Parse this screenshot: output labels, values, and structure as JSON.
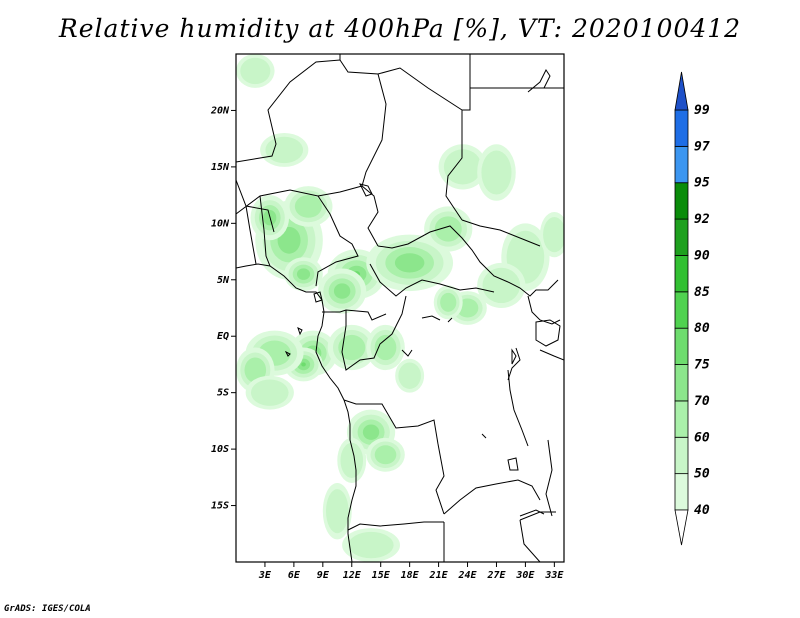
{
  "title": "Relative humidity at 400hPa [%], VT: 2020100412",
  "credit": "GrADS: IGES/COLA",
  "map": {
    "lon_range": [
      0,
      34
    ],
    "lat_range": [
      -20,
      25
    ],
    "lat_labels": [
      {
        "text": "20N",
        "lat": 20
      },
      {
        "text": "15N",
        "lat": 15
      },
      {
        "text": "10N",
        "lat": 10
      },
      {
        "text": "5N",
        "lat": 5
      },
      {
        "text": "EQ",
        "lat": 0
      },
      {
        "text": "5S",
        "lat": -5
      },
      {
        "text": "10S",
        "lat": -10
      },
      {
        "text": "15S",
        "lat": -15
      }
    ],
    "lon_labels": [
      {
        "text": "3E",
        "lon": 3
      },
      {
        "text": "6E",
        "lon": 6
      },
      {
        "text": "9E",
        "lon": 9
      },
      {
        "text": "12E",
        "lon": 12
      },
      {
        "text": "15E",
        "lon": 15
      },
      {
        "text": "18E",
        "lon": 18
      },
      {
        "text": "21E",
        "lon": 21
      },
      {
        "text": "24E",
        "lon": 24
      },
      {
        "text": "27E",
        "lon": 27
      },
      {
        "text": "30E",
        "lon": 30
      },
      {
        "text": "33E",
        "lon": 33
      }
    ]
  },
  "colorbar": {
    "levels": [
      {
        "label": "40",
        "color": "#f0fff0"
      },
      {
        "label": "50",
        "color": "#dcfadc"
      },
      {
        "label": "60",
        "color": "#c8f5c8"
      },
      {
        "label": "70",
        "color": "#aaf0aa"
      },
      {
        "label": "75",
        "color": "#8ce68c"
      },
      {
        "label": "80",
        "color": "#6edc6e"
      },
      {
        "label": "85",
        "color": "#50d250"
      },
      {
        "label": "90",
        "color": "#32c032"
      },
      {
        "label": "92",
        "color": "#1ea01e"
      },
      {
        "label": "95",
        "color": "#0a8c0a"
      },
      {
        "label": "97",
        "color": "#3c96f0"
      },
      {
        "label": "99",
        "color": "#1e6ee6"
      }
    ],
    "under_color": "#ffffff",
    "over_color": "#1e50c8"
  },
  "humidity_patches": [
    {
      "lon": 5.5,
      "lat": 8.5,
      "rx": 3.5,
      "ry": 3.5,
      "level": 3
    },
    {
      "lon": 3.5,
      "lat": 10.5,
      "rx": 2.0,
      "ry": 2.0,
      "level": 3
    },
    {
      "lon": 7.5,
      "lat": 11.5,
      "rx": 2.5,
      "ry": 1.8,
      "level": 2
    },
    {
      "lon": 12.5,
      "lat": 5.5,
      "rx": 3.0,
      "ry": 2.2,
      "level": 4
    },
    {
      "lon": 11.0,
      "lat": 4.0,
      "rx": 2.5,
      "ry": 2.0,
      "level": 3
    },
    {
      "lon": 18.0,
      "lat": 6.5,
      "rx": 4.5,
      "ry": 2.5,
      "level": 3
    },
    {
      "lon": 22.0,
      "lat": 9.5,
      "rx": 2.5,
      "ry": 2.0,
      "level": 2
    },
    {
      "lon": 23.5,
      "lat": 15.0,
      "rx": 2.5,
      "ry": 2.0,
      "level": 1
    },
    {
      "lon": 27.0,
      "lat": 14.5,
      "rx": 2.0,
      "ry": 2.5,
      "level": 1
    },
    {
      "lon": 30.0,
      "lat": 7.0,
      "rx": 2.5,
      "ry": 3.0,
      "level": 1
    },
    {
      "lon": 33.0,
      "lat": 9.0,
      "rx": 1.5,
      "ry": 2.0,
      "level": 1
    },
    {
      "lon": 8.0,
      "lat": -1.5,
      "rx": 2.5,
      "ry": 2.0,
      "level": 3
    },
    {
      "lon": 7.0,
      "lat": -2.5,
      "rx": 2.0,
      "ry": 1.5,
      "level": 4
    },
    {
      "lon": 4.0,
      "lat": -1.5,
      "rx": 3.0,
      "ry": 2.0,
      "level": 2
    },
    {
      "lon": 2.0,
      "lat": -3.0,
      "rx": 2.0,
      "ry": 2.0,
      "level": 2
    },
    {
      "lon": 3.5,
      "lat": -5.0,
      "rx": 2.5,
      "ry": 1.5,
      "level": 1
    },
    {
      "lon": 12.0,
      "lat": -1.0,
      "rx": 2.5,
      "ry": 2.0,
      "level": 2
    },
    {
      "lon": 15.5,
      "lat": -1.0,
      "rx": 2.0,
      "ry": 2.0,
      "level": 2
    },
    {
      "lon": 14.0,
      "lat": -8.5,
      "rx": 2.5,
      "ry": 2.0,
      "level": 3
    },
    {
      "lon": 15.5,
      "lat": -10.5,
      "rx": 2.0,
      "ry": 1.5,
      "level": 2
    },
    {
      "lon": 12.0,
      "lat": -11.0,
      "rx": 1.5,
      "ry": 2.0,
      "level": 1
    },
    {
      "lon": 10.5,
      "lat": -15.5,
      "rx": 1.5,
      "ry": 2.5,
      "level": 1
    },
    {
      "lon": 14.0,
      "lat": -18.5,
      "rx": 3.0,
      "ry": 1.5,
      "level": 1
    },
    {
      "lon": 24.0,
      "lat": 2.5,
      "rx": 2.0,
      "ry": 1.5,
      "level": 2
    },
    {
      "lon": 27.5,
      "lat": 4.5,
      "rx": 2.5,
      "ry": 2.0,
      "level": 1
    },
    {
      "lon": 22.0,
      "lat": 3.0,
      "rx": 1.5,
      "ry": 1.5,
      "level": 2
    },
    {
      "lon": 5.0,
      "lat": 16.5,
      "rx": 2.5,
      "ry": 1.5,
      "level": 1
    },
    {
      "lon": 2.0,
      "lat": 23.5,
      "rx": 2.0,
      "ry": 1.5,
      "level": 1
    },
    {
      "lon": 7.0,
      "lat": 5.5,
      "rx": 2.0,
      "ry": 1.5,
      "level": 3
    },
    {
      "lon": 18.0,
      "lat": -3.5,
      "rx": 1.5,
      "ry": 1.5,
      "level": 1
    }
  ]
}
